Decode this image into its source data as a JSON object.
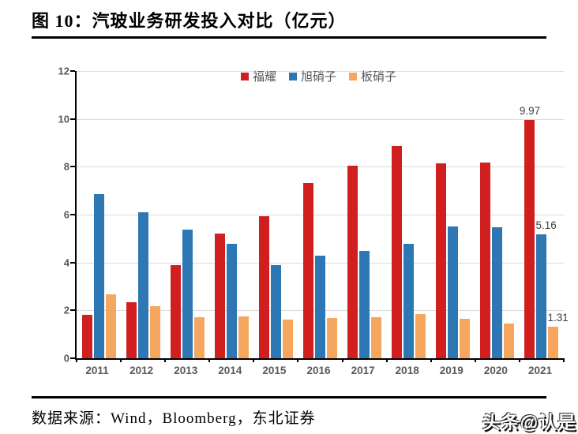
{
  "title": "图 10：汽玻业务研发投入对比（亿元）",
  "source": "数据来源：Wind，Bloomberg，东北证券",
  "watermark": "头条@认是",
  "colors": {
    "fuyao_red": "#d11f1f",
    "agc_blue": "#2e77b5",
    "nsg_orange": "#f6a75f",
    "gridline": "#dcdcdf",
    "axis": "#000000",
    "tick_text": "#595959",
    "data_label_text": "#404040"
  },
  "chart_data": {
    "type": "bar",
    "title": "汽玻业务研发投入对比（亿元）",
    "xlabel": "",
    "ylabel": "",
    "categories": [
      "2011",
      "2012",
      "2013",
      "2014",
      "2015",
      "2016",
      "2017",
      "2018",
      "2019",
      "2020",
      "2021"
    ],
    "series": [
      {
        "name": "福耀",
        "color_key": "fuyao_red",
        "values": [
          1.8,
          2.35,
          3.9,
          5.2,
          5.92,
          7.31,
          8.05,
          8.87,
          8.13,
          8.16,
          9.97
        ]
      },
      {
        "name": "旭硝子",
        "color_key": "agc_blue",
        "values": [
          6.87,
          6.1,
          5.38,
          4.78,
          3.9,
          4.28,
          4.5,
          4.77,
          5.5,
          5.48,
          5.16
        ]
      },
      {
        "name": "板硝子",
        "color_key": "nsg_orange",
        "values": [
          2.66,
          2.17,
          1.71,
          1.76,
          1.62,
          1.67,
          1.7,
          1.85,
          1.66,
          1.46,
          1.31
        ]
      }
    ],
    "ylim": [
      0,
      12
    ],
    "yticks": [
      0,
      2,
      4,
      6,
      8,
      10,
      12
    ],
    "grid": true,
    "legend_position": "top-center",
    "data_labels": [
      {
        "series": "福耀",
        "category": "2021",
        "text": "9.97"
      },
      {
        "series": "旭硝子",
        "category": "2021",
        "text": "5.16"
      },
      {
        "series": "板硝子",
        "category": "2021",
        "text": "1.31"
      }
    ]
  }
}
